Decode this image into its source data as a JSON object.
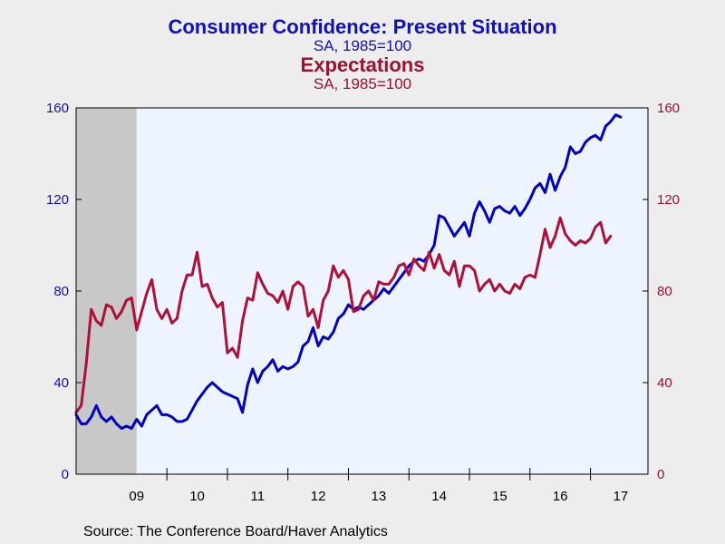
{
  "titles": {
    "title1": "Consumer Confidence: Present Situation",
    "subtitle1": "SA, 1985=100",
    "title2": "Expectations",
    "subtitle2": "SA, 1985=100"
  },
  "source": "Source:  The Conference Board/Haver Analytics",
  "chart_data": {
    "type": "line",
    "x_unit": "year (decimal)",
    "xlim": [
      2008.5,
      2017.95
    ],
    "recession_shading": [
      2008.5,
      2009.5
    ],
    "x_ticks": [
      {
        "label": "09",
        "center": 2009.5
      },
      {
        "label": "10",
        "center": 2010.5
      },
      {
        "label": "11",
        "center": 2011.5
      },
      {
        "label": "12",
        "center": 2012.5
      },
      {
        "label": "13",
        "center": 2013.5
      },
      {
        "label": "14",
        "center": 2014.5
      },
      {
        "label": "15",
        "center": 2015.5
      },
      {
        "label": "16",
        "center": 2016.5
      },
      {
        "label": "17",
        "center": 2017.5
      }
    ],
    "year_boundaries": [
      2010,
      2011,
      2012,
      2013,
      2014,
      2015,
      2016,
      2017
    ],
    "y_left": {
      "ticks": [
        "0",
        "40",
        "80",
        "120",
        "160"
      ],
      "lim": [
        0,
        160
      ],
      "color": "#1010c0"
    },
    "y_right": {
      "ticks": [
        "0",
        "40",
        "80",
        "120",
        "160"
      ],
      "lim": [
        0,
        160
      ],
      "color": "#a01030"
    },
    "grid": false,
    "plot_background": "#eef4ff",
    "recession_color": "#c8c8c8",
    "series": [
      {
        "color": "#0000c8",
        "start": 2008.5,
        "step": 0.083333,
        "values": [
          26,
          22,
          22,
          25,
          30,
          25,
          23,
          25,
          22,
          20,
          21,
          20,
          24,
          21,
          26,
          28,
          30,
          26,
          26,
          25,
          23,
          23,
          24,
          28,
          32,
          35,
          38,
          40,
          38,
          36,
          35,
          34,
          33,
          27,
          39,
          46,
          40,
          45,
          47,
          50,
          45,
          47,
          46,
          47,
          49,
          56,
          58,
          64,
          56,
          60,
          59,
          62,
          68,
          70,
          74,
          72,
          73,
          72,
          74,
          76,
          78,
          81,
          79,
          82,
          85,
          88,
          91,
          93,
          94,
          93,
          96,
          100,
          113,
          112,
          108,
          104,
          107,
          110,
          104,
          114,
          119,
          115,
          110,
          116,
          117,
          115,
          114,
          117,
          113,
          116,
          120,
          125,
          127,
          123,
          131,
          124,
          130,
          134,
          143,
          140,
          141,
          145,
          147,
          148,
          146,
          152,
          154,
          157,
          156
        ]
      },
      {
        "color": "#b01038",
        "start": 2008.5,
        "step": 0.083333,
        "values": [
          27,
          30,
          48,
          72,
          67,
          65,
          74,
          73,
          68,
          71,
          76,
          77,
          63,
          71,
          79,
          85,
          72,
          68,
          72,
          66,
          68,
          80,
          87,
          87,
          97,
          82,
          83,
          77,
          73,
          75,
          53,
          55,
          51,
          67,
          77,
          76,
          88,
          83,
          79,
          78,
          75,
          80,
          72,
          82,
          84,
          82,
          69,
          72,
          64,
          76,
          80,
          91,
          86,
          89,
          85,
          71,
          72,
          78,
          80,
          76,
          84,
          83,
          83,
          86,
          91,
          92,
          87,
          94,
          91,
          89,
          97,
          90,
          96,
          89,
          87,
          93,
          82,
          91,
          91,
          89,
          80,
          83,
          85,
          80,
          83,
          80,
          79,
          83,
          81,
          86,
          87,
          86,
          96,
          107,
          99,
          104,
          112,
          105,
          102,
          100,
          102,
          101,
          103,
          108,
          110,
          101,
          104
        ]
      }
    ]
  }
}
